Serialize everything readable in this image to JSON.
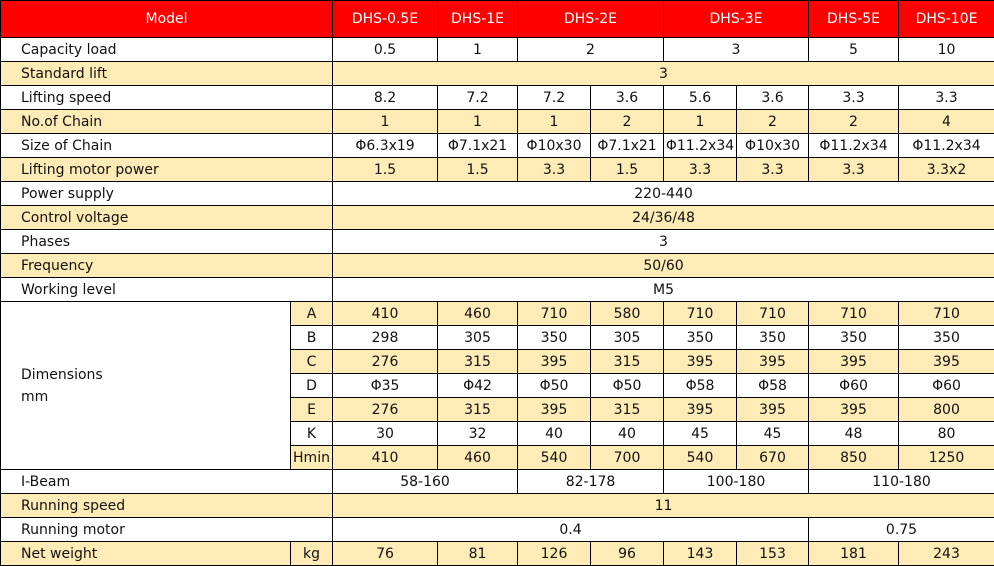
{
  "header": {
    "label": "Model",
    "models": [
      {
        "text": "DHS-0.5E",
        "span": 1
      },
      {
        "text": "DHS-1E",
        "span": 1
      },
      {
        "text": "DHS-2E",
        "span": 2
      },
      {
        "text": "DHS-3E",
        "span": 2
      },
      {
        "text": "DHS-5E",
        "span": 1
      },
      {
        "text": "DHS-10E",
        "span": 1
      }
    ]
  },
  "colors": {
    "header_bg": "#ff0000",
    "header_text": "#ffffff",
    "shade_bg": "#ffebb5"
  },
  "rows": [
    {
      "label": "Capacity load",
      "shade": false,
      "cells": [
        {
          "text": "0.5",
          "span": 1
        },
        {
          "text": "1",
          "span": 1
        },
        {
          "text": "2",
          "span": 2
        },
        {
          "text": "3",
          "span": 2
        },
        {
          "text": "5",
          "span": 1
        },
        {
          "text": "10",
          "span": 1
        }
      ]
    },
    {
      "label": "Standard lift",
      "shade": true,
      "cells": [
        {
          "text": "3",
          "span": 8
        }
      ]
    },
    {
      "label": "Lifting speed",
      "shade": false,
      "cells": [
        {
          "text": "8.2",
          "span": 1
        },
        {
          "text": "7.2",
          "span": 1
        },
        {
          "text": "7.2",
          "span": 1
        },
        {
          "text": "3.6",
          "span": 1
        },
        {
          "text": "5.6",
          "span": 1
        },
        {
          "text": "3.6",
          "span": 1
        },
        {
          "text": "3.3",
          "span": 1
        },
        {
          "text": "3.3",
          "span": 1
        }
      ]
    },
    {
      "label": "No.of Chain",
      "shade": true,
      "cells": [
        {
          "text": "1",
          "span": 1
        },
        {
          "text": "1",
          "span": 1
        },
        {
          "text": "1",
          "span": 1
        },
        {
          "text": "2",
          "span": 1
        },
        {
          "text": "1",
          "span": 1
        },
        {
          "text": "2",
          "span": 1
        },
        {
          "text": "2",
          "span": 1
        },
        {
          "text": "4",
          "span": 1
        }
      ]
    },
    {
      "label": "Size of Chain",
      "shade": false,
      "cells": [
        {
          "text": "Φ6.3x19",
          "span": 1
        },
        {
          "text": "Φ7.1x21",
          "span": 1
        },
        {
          "text": "Φ10x30",
          "span": 1
        },
        {
          "text": "Φ7.1x21",
          "span": 1
        },
        {
          "text": "Φ11.2x34",
          "span": 1
        },
        {
          "text": "Φ10x30",
          "span": 1
        },
        {
          "text": "Φ11.2x34",
          "span": 1
        },
        {
          "text": "Φ11.2x34",
          "span": 1
        }
      ]
    },
    {
      "label": "Lifting motor power",
      "shade": true,
      "cells": [
        {
          "text": "1.5",
          "span": 1
        },
        {
          "text": "1.5",
          "span": 1
        },
        {
          "text": "3.3",
          "span": 1
        },
        {
          "text": "1.5",
          "span": 1
        },
        {
          "text": "3.3",
          "span": 1
        },
        {
          "text": "3.3",
          "span": 1
        },
        {
          "text": "3.3",
          "span": 1
        },
        {
          "text": "3.3x2",
          "span": 1
        }
      ]
    },
    {
      "label": "Power supply",
      "shade": false,
      "cells": [
        {
          "text": "220-440",
          "span": 8
        }
      ]
    },
    {
      "label": "Control voltage",
      "shade": true,
      "cells": [
        {
          "text": "24/36/48",
          "span": 8
        }
      ]
    },
    {
      "label": "Phases",
      "shade": false,
      "cells": [
        {
          "text": "3",
          "span": 8
        }
      ]
    },
    {
      "label": "Frequency",
      "shade": true,
      "cells": [
        {
          "text": "50/60",
          "span": 8
        }
      ]
    },
    {
      "label": "Working level",
      "shade": false,
      "cells": [
        {
          "text": "M5",
          "span": 8
        }
      ]
    }
  ],
  "dimensions": {
    "label": "Dimensions\nmm",
    "rows": [
      {
        "sub": "A",
        "shade": true,
        "values": [
          "410",
          "460",
          "710",
          "580",
          "710",
          "710",
          "710",
          "710"
        ]
      },
      {
        "sub": "B",
        "shade": false,
        "values": [
          "298",
          "305",
          "350",
          "305",
          "350",
          "350",
          "350",
          "350"
        ]
      },
      {
        "sub": "C",
        "shade": true,
        "values": [
          "276",
          "315",
          "395",
          "315",
          "395",
          "395",
          "395",
          "395"
        ]
      },
      {
        "sub": "D",
        "shade": false,
        "values": [
          "Φ35",
          "Φ42",
          "Φ50",
          "Φ50",
          "Φ58",
          "Φ58",
          "Φ60",
          "Φ60"
        ]
      },
      {
        "sub": "E",
        "shade": true,
        "values": [
          "276",
          "315",
          "395",
          "315",
          "395",
          "395",
          "395",
          "800"
        ]
      },
      {
        "sub": "K",
        "shade": false,
        "values": [
          "30",
          "32",
          "40",
          "40",
          "45",
          "45",
          "48",
          "80"
        ]
      },
      {
        "sub": "Hmin",
        "shade": true,
        "values": [
          "410",
          "460",
          "540",
          "700",
          "540",
          "670",
          "850",
          "1250"
        ]
      }
    ]
  },
  "rows_bottom": [
    {
      "label": "I-Beam",
      "shade": false,
      "cells": [
        {
          "text": "58-160",
          "span": 2
        },
        {
          "text": "82-178",
          "span": 2
        },
        {
          "text": "100-180",
          "span": 2
        },
        {
          "text": "110-180",
          "span": 2
        }
      ]
    },
    {
      "label": "Running speed",
      "shade": true,
      "cells": [
        {
          "text": "11",
          "span": 8
        }
      ]
    },
    {
      "label": "Running motor",
      "shade": false,
      "cells": [
        {
          "text": "0.4",
          "span": 6
        },
        {
          "text": "0.75",
          "span": 2
        }
      ]
    },
    {
      "label": "Net weight",
      "unit": "kg",
      "shade": true,
      "cells": [
        {
          "text": "76",
          "span": 1
        },
        {
          "text": "81",
          "span": 1
        },
        {
          "text": "126",
          "span": 1
        },
        {
          "text": "96",
          "span": 1
        },
        {
          "text": "143",
          "span": 1
        },
        {
          "text": "153",
          "span": 1
        },
        {
          "text": "181",
          "span": 1
        },
        {
          "text": "243",
          "span": 1
        }
      ]
    }
  ]
}
